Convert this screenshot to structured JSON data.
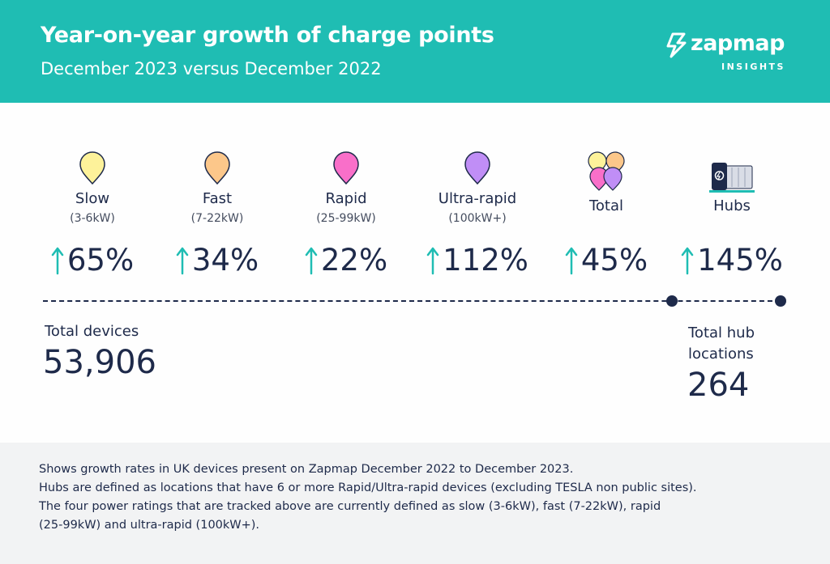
{
  "header": {
    "title": "Year-on-year growth of charge points",
    "subtitle": "December 2023 versus December 2022",
    "brand_name": "zapmap",
    "brand_sub": "INSIGHTS"
  },
  "colors": {
    "header_bg": "#1fbdb3",
    "arrow": "#1fbdb3",
    "text_dark": "#1e2a4a",
    "slow_pin": "#fdf29a",
    "fast_pin": "#fcc78a",
    "rapid_pin": "#f96fc9",
    "ultra_pin": "#c08ef6",
    "footer_bg": "#f2f3f4"
  },
  "categories": [
    {
      "name": "Slow",
      "range": "(3-6kW)",
      "growth": "65%",
      "icon": "pin-icon"
    },
    {
      "name": "Fast",
      "range": "(7-22kW)",
      "growth": "34%",
      "icon": "pin-icon"
    },
    {
      "name": "Rapid",
      "range": "(25-99kW)",
      "growth": "22%",
      "icon": "pin-icon"
    },
    {
      "name": "Ultra-rapid",
      "range": "(100kW+)",
      "growth": "112%",
      "icon": "pin-icon"
    },
    {
      "name": "Total",
      "range": "",
      "growth": "45%",
      "icon": "pin-cluster-icon"
    },
    {
      "name": "Hubs",
      "range": "",
      "growth": "145%",
      "icon": "charging-hub-icon"
    }
  ],
  "totals": {
    "devices_label": "Total devices",
    "devices_value": "53,906",
    "hubs_label": "Total hub locations",
    "hubs_value": "264"
  },
  "footer": {
    "line1": "Shows growth rates in UK devices present on Zapmap December 2022 to December 2023.",
    "line2": "Hubs are defined as locations that have 6 or more Rapid/Ultra-rapid devices (excluding TESLA non public sites).",
    "line3": "The four power ratings that are tracked above are currently defined as slow (3-6kW), fast (7-22kW), rapid",
    "line4": "(25-99kW) and ultra-rapid (100kW+)."
  }
}
